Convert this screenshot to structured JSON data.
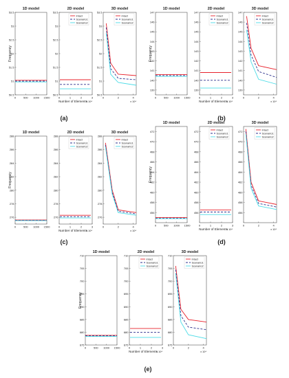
{
  "figure": {
    "colors": {
      "intact": "#e8202a",
      "scenario1": "#2b2f8c",
      "scenario2": "#49dbe6",
      "axis": "#555555",
      "text": "#222222"
    },
    "panel_titles": [
      "1D model",
      "2D model",
      "3D model"
    ],
    "ylabel": "Frequency",
    "xlabel": "Number of Elements",
    "legend": [
      "Intact",
      "Scenario1",
      "Scenario2"
    ]
  },
  "chart_data": [
    {
      "type": "line",
      "label": "(a)",
      "ylim": [
        50.5,
        53.5
      ],
      "yticks": [
        "50.5",
        "51",
        "51.5",
        "52",
        "52.5",
        "53",
        "53.5"
      ],
      "exponents": [
        "x 10⁴",
        "x 10⁴"
      ],
      "x1d": [
        0,
        1500
      ],
      "x1dticks": [
        "0",
        "500",
        "1000",
        "1500"
      ],
      "x2d": [
        0,
        3
      ],
      "x2dticks": [
        "0",
        "1",
        "2",
        "3"
      ],
      "x3d": [
        0,
        4.4
      ],
      "x3dticks": [
        "0",
        "2",
        "4"
      ],
      "series": [
        {
          "name": "Intact",
          "d1": 51.03,
          "d2": 51.05,
          "d3x": [
            0.4,
            1.0,
            2.0,
            4.4
          ],
          "d3y": [
            53.1,
            51.65,
            51.25,
            51.2
          ]
        },
        {
          "name": "Scenario1",
          "d1": 51.0,
          "d2": 50.88,
          "d3x": [
            0.4,
            1.0,
            2.0,
            4.4
          ],
          "d3y": [
            52.95,
            51.45,
            51.1,
            51.05
          ]
        },
        {
          "name": "Scenario2",
          "d1": 50.97,
          "d2": 50.72,
          "d3x": [
            0.4,
            1.0,
            2.0,
            4.4
          ],
          "d3y": [
            52.75,
            51.25,
            50.95,
            50.85
          ]
        }
      ]
    },
    {
      "type": "line",
      "label": "(b)",
      "ylim": [
        138.5,
        147
      ],
      "yticks": [
        "139",
        "140",
        "141",
        "142",
        "143",
        "144",
        "145",
        "146",
        "147"
      ],
      "exponents": [
        "x 10⁴",
        "x 10⁴"
      ],
      "x1d": [
        0,
        1500
      ],
      "x1dticks": [
        "0",
        "500",
        "1000",
        "1500"
      ],
      "x2d": [
        0,
        3
      ],
      "x2dticks": [
        "0",
        "1",
        "2",
        "3"
      ],
      "x3d": [
        0,
        4.4
      ],
      "x3dticks": [
        "0",
        "2",
        "4"
      ],
      "series": [
        {
          "name": "Intact",
          "d1": 140.6,
          "d2": 140.8,
          "d3x": [
            0.4,
            1.0,
            2.0,
            4.4
          ],
          "d3y": [
            146.6,
            143.3,
            141.5,
            141.1
          ]
        },
        {
          "name": "Scenario1",
          "d1": 140.5,
          "d2": 140.0,
          "d3x": [
            0.4,
            1.0,
            2.0,
            4.4
          ],
          "d3y": [
            145.9,
            142.6,
            140.9,
            140.3
          ]
        },
        {
          "name": "Scenario2",
          "d1": 140.4,
          "d2": 139.2,
          "d3x": [
            0.4,
            1.0,
            2.0,
            4.4
          ],
          "d3y": [
            145.2,
            141.9,
            140.1,
            139.6
          ]
        }
      ]
    },
    {
      "type": "line",
      "label": "(c)",
      "ylim": [
        275,
        288
      ],
      "yticks": [
        "276",
        "278",
        "280",
        "282",
        "284",
        "286",
        "288"
      ],
      "exponents": [
        "x 10⁴",
        "x 10⁴"
      ],
      "x1d": [
        0,
        1500
      ],
      "x1dticks": [
        "0",
        "500",
        "1000",
        "1500"
      ],
      "x2d": [
        0,
        3
      ],
      "x2dticks": [
        "0",
        "1",
        "2",
        "3"
      ],
      "x3d": [
        0,
        4.4
      ],
      "x3dticks": [
        "0",
        "2",
        "4"
      ],
      "series": [
        {
          "name": "Intact",
          "d1": 275.6,
          "d2": 276.3,
          "d3x": [
            0.3,
            1.2,
            2.0,
            4.4
          ],
          "d3y": [
            287.0,
            280.0,
            277.1,
            276.7
          ]
        },
        {
          "name": "Scenario1",
          "d1": 275.55,
          "d2": 276.1,
          "d3x": [
            0.3,
            1.2,
            2.0,
            4.4
          ],
          "d3y": [
            286.7,
            279.7,
            276.9,
            276.5
          ]
        },
        {
          "name": "Scenario2",
          "d1": 275.5,
          "d2": 275.9,
          "d3x": [
            0.3,
            1.2,
            2.0,
            4.4
          ],
          "d3y": [
            286.4,
            279.4,
            276.7,
            276.3
          ]
        }
      ]
    },
    {
      "type": "line",
      "label": "(d)",
      "ylim": [
        454,
        473
      ],
      "yticks": [
        "456",
        "458",
        "460",
        "462",
        "464",
        "466",
        "468",
        "470",
        "472"
      ],
      "exponents": [
        "x 10⁴",
        "x 10⁴"
      ],
      "x1d": [
        0,
        1500
      ],
      "x1dticks": [
        "0",
        "500",
        "1000",
        "1500"
      ],
      "x2d": [
        0,
        3
      ],
      "x2dticks": [
        "0",
        "1",
        "2",
        "3"
      ],
      "x3d": [
        0,
        4.4
      ],
      "x3dticks": [
        "0",
        "2",
        "4"
      ],
      "series": [
        {
          "name": "Intact",
          "d1": 455.0,
          "d2": 456.5,
          "d3x": [
            0.3,
            1.0,
            2.0,
            4.4
          ],
          "d3y": [
            472.5,
            462.0,
            458.3,
            457.6
          ]
        },
        {
          "name": "Scenario1",
          "d1": 454.9,
          "d2": 456.1,
          "d3x": [
            0.3,
            1.0,
            2.0,
            4.4
          ],
          "d3y": [
            472.0,
            461.4,
            457.8,
            457.1
          ]
        },
        {
          "name": "Scenario2",
          "d1": 454.8,
          "d2": 455.6,
          "d3x": [
            0.3,
            1.0,
            2.0,
            4.4
          ],
          "d3y": [
            471.5,
            460.8,
            457.3,
            456.6
          ]
        }
      ]
    },
    {
      "type": "line",
      "label": "(e)",
      "ylim": [
        675,
        710
      ],
      "yticks": [
        "675",
        "680",
        "685",
        "690",
        "695",
        "700",
        "705",
        "710"
      ],
      "exponents": [
        "x 10⁴",
        "x 10⁴"
      ],
      "x1d": [
        0,
        1500
      ],
      "x1dticks": [
        "0",
        "500",
        "1000",
        "1500"
      ],
      "x2d": [
        0,
        3
      ],
      "x2dticks": [
        "0",
        "1",
        "2",
        "3"
      ],
      "x3d": [
        0,
        4.4
      ],
      "x3dticks": [
        "0",
        "2",
        "4"
      ],
      "series": [
        {
          "name": "Intact",
          "d1": 678.8,
          "d2": 681.5,
          "d3x": [
            0.3,
            1.0,
            2.0,
            4.4
          ],
          "d3y": [
            706.0,
            689.0,
            685.0,
            684.0
          ]
        },
        {
          "name": "Scenario1",
          "d1": 678.6,
          "d2": 680.0,
          "d3x": [
            0.3,
            1.0,
            2.0,
            4.4
          ],
          "d3y": [
            704.5,
            686.5,
            682.0,
            681.0
          ]
        },
        {
          "name": "Scenario2",
          "d1": 678.4,
          "d2": 678.0,
          "d3x": [
            0.3,
            1.0,
            2.0,
            4.4
          ],
          "d3y": [
            703.0,
            684.0,
            679.0,
            677.5
          ]
        }
      ]
    }
  ]
}
